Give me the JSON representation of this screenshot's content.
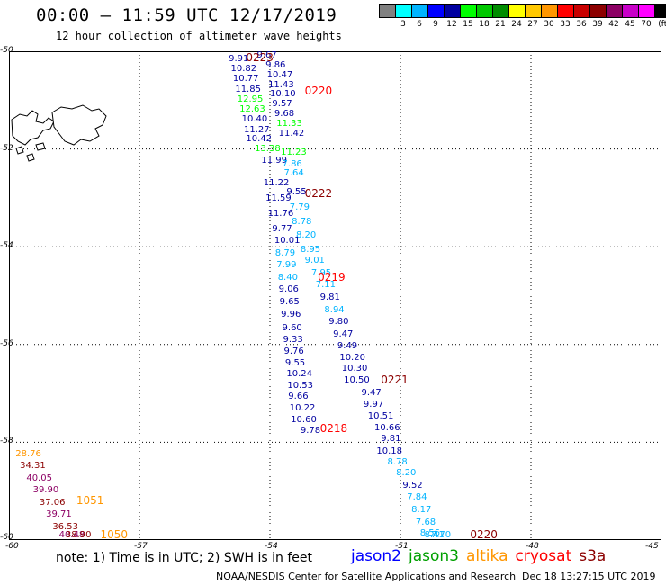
{
  "header": {
    "title": "00:00 – 11:59 UTC 12/17/2019",
    "subtitle": "12 hour collection of altimeter wave heights"
  },
  "color_scale": {
    "colors": [
      "#808080",
      "#00ffff",
      "#00b4ff",
      "#0000ff",
      "#0000a0",
      "#00ff00",
      "#00c800",
      "#008c00",
      "#ffff00",
      "#ffc800",
      "#ff9600",
      "#ff0000",
      "#c80000",
      "#8c0000",
      "#8c0064",
      "#c800c8",
      "#ff00ff",
      "#000000"
    ],
    "labels": [
      {
        "text": "3",
        "slot": 1
      },
      {
        "text": "6",
        "slot": 2
      },
      {
        "text": "9",
        "slot": 3
      },
      {
        "text": "12",
        "slot": 4
      },
      {
        "text": "15",
        "slot": 5
      },
      {
        "text": "18",
        "slot": 6
      },
      {
        "text": "21",
        "slot": 7
      },
      {
        "text": "24",
        "slot": 8
      },
      {
        "text": "27",
        "slot": 9
      },
      {
        "text": "30",
        "slot": 10
      },
      {
        "text": "33",
        "slot": 11
      },
      {
        "text": "36",
        "slot": 12
      },
      {
        "text": "39",
        "slot": 13
      },
      {
        "text": "42",
        "slot": 14
      },
      {
        "text": "45",
        "slot": 15
      },
      {
        "text": "70",
        "slot": 16
      },
      {
        "text": "(ft)",
        "slot": 17
      }
    ]
  },
  "map": {
    "lon_range": [
      -60,
      -45
    ],
    "lat_range": [
      -60,
      -50
    ],
    "lon_labels": [
      "-60",
      "-57",
      "-54",
      "-51",
      "-48",
      "-45"
    ],
    "lat_labels": [
      "-50",
      "-52",
      "-54",
      "-56",
      "-58",
      "-60"
    ],
    "grid": "dotted",
    "land_icon": "falkland-islands-coastline"
  },
  "observations": [
    {
      "text": "9.91",
      "lon": -54.95,
      "lat": -50.08,
      "color": "#0000a0"
    },
    {
      "text": "9.67",
      "lon": -54.3,
      "lat": -50.0,
      "color": "#0000a0"
    },
    {
      "text": "10.82",
      "lon": -54.9,
      "lat": -50.28,
      "color": "#0000a0"
    },
    {
      "text": "9.86",
      "lon": -54.1,
      "lat": -50.2,
      "color": "#0000a0"
    },
    {
      "text": "10.77",
      "lon": -54.85,
      "lat": -50.48,
      "color": "#0000a0"
    },
    {
      "text": "10.47",
      "lon": -54.07,
      "lat": -50.4,
      "color": "#0000a0"
    },
    {
      "text": "11.85",
      "lon": -54.8,
      "lat": -50.7,
      "color": "#0000a0"
    },
    {
      "text": "11.43",
      "lon": -54.04,
      "lat": -50.6,
      "color": "#0000a0"
    },
    {
      "text": "12.95",
      "lon": -54.75,
      "lat": -50.9,
      "color": "#00ff00"
    },
    {
      "text": "10.10",
      "lon": -54.0,
      "lat": -50.8,
      "color": "#0000a0"
    },
    {
      "text": "12.63",
      "lon": -54.7,
      "lat": -51.1,
      "color": "#00ff00"
    },
    {
      "text": "9.57",
      "lon": -53.95,
      "lat": -51.0,
      "color": "#0000a0"
    },
    {
      "text": "10.40",
      "lon": -54.65,
      "lat": -51.3,
      "color": "#0000a0"
    },
    {
      "text": "9.68",
      "lon": -53.9,
      "lat": -51.2,
      "color": "#0000a0"
    },
    {
      "text": "11.33",
      "lon": -53.85,
      "lat": -51.4,
      "color": "#00ff00"
    },
    {
      "text": "11.27",
      "lon": -54.6,
      "lat": -51.52,
      "color": "#0000a0"
    },
    {
      "text": "11.42",
      "lon": -53.8,
      "lat": -51.6,
      "color": "#0000a0"
    },
    {
      "text": "10.42",
      "lon": -54.55,
      "lat": -51.72,
      "color": "#0000a0"
    },
    {
      "text": "13.38",
      "lon": -54.35,
      "lat": -51.92,
      "color": "#00ff00"
    },
    {
      "text": "11.23",
      "lon": -53.75,
      "lat": -51.98,
      "color": "#00ff00"
    },
    {
      "text": "11.99",
      "lon": -54.2,
      "lat": -52.15,
      "color": "#0000a0"
    },
    {
      "text": "7.86",
      "lon": -53.72,
      "lat": -52.22,
      "color": "#00b4ff"
    },
    {
      "text": "7.64",
      "lon": -53.68,
      "lat": -52.42,
      "color": "#00b4ff"
    },
    {
      "text": "11.22",
      "lon": -54.15,
      "lat": -52.62,
      "color": "#0000a0"
    },
    {
      "text": "9.55",
      "lon": -53.62,
      "lat": -52.8,
      "color": "#0000a0"
    },
    {
      "text": "11.59",
      "lon": -54.1,
      "lat": -52.92,
      "color": "#0000a0"
    },
    {
      "text": "7.79",
      "lon": -53.55,
      "lat": -53.12,
      "color": "#00b4ff"
    },
    {
      "text": "11.76",
      "lon": -54.05,
      "lat": -53.25,
      "color": "#0000a0"
    },
    {
      "text": "8.78",
      "lon": -53.5,
      "lat": -53.4,
      "color": "#00b4ff"
    },
    {
      "text": "9.77",
      "lon": -53.95,
      "lat": -53.55,
      "color": "#0000a0"
    },
    {
      "text": "8.20",
      "lon": -53.4,
      "lat": -53.68,
      "color": "#00b4ff"
    },
    {
      "text": "10.01",
      "lon": -53.9,
      "lat": -53.8,
      "color": "#0000a0"
    },
    {
      "text": "8.95",
      "lon": -53.3,
      "lat": -53.98,
      "color": "#00b4ff"
    },
    {
      "text": "8.79",
      "lon": -53.88,
      "lat": -54.05,
      "color": "#00b4ff"
    },
    {
      "text": "9.01",
      "lon": -53.2,
      "lat": -54.2,
      "color": "#00b4ff"
    },
    {
      "text": "7.99",
      "lon": -53.85,
      "lat": -54.3,
      "color": "#00b4ff"
    },
    {
      "text": "7.95",
      "lon": -53.05,
      "lat": -54.45,
      "color": "#00b4ff"
    },
    {
      "text": "8.40",
      "lon": -53.82,
      "lat": -54.55,
      "color": "#00b4ff"
    },
    {
      "text": "7.11",
      "lon": -52.95,
      "lat": -54.7,
      "color": "#00b4ff"
    },
    {
      "text": "9.06",
      "lon": -53.8,
      "lat": -54.78,
      "color": "#0000a0"
    },
    {
      "text": "9.81",
      "lon": -52.85,
      "lat": -54.95,
      "color": "#0000a0"
    },
    {
      "text": "9.65",
      "lon": -53.78,
      "lat": -55.05,
      "color": "#0000a0"
    },
    {
      "text": "8.94",
      "lon": -52.75,
      "lat": -55.22,
      "color": "#00b4ff"
    },
    {
      "text": "9.96",
      "lon": -53.75,
      "lat": -55.3,
      "color": "#0000a0"
    },
    {
      "text": "9.80",
      "lon": -52.65,
      "lat": -55.45,
      "color": "#0000a0"
    },
    {
      "text": "9.60",
      "lon": -53.72,
      "lat": -55.58,
      "color": "#0000a0"
    },
    {
      "text": "9.47",
      "lon": -52.55,
      "lat": -55.7,
      "color": "#0000a0"
    },
    {
      "text": "9.33",
      "lon": -53.7,
      "lat": -55.82,
      "color": "#0000a0"
    },
    {
      "text": "9.49",
      "lon": -52.45,
      "lat": -55.95,
      "color": "#0000a0"
    },
    {
      "text": "9.76",
      "lon": -53.68,
      "lat": -56.05,
      "color": "#0000a0"
    },
    {
      "text": "10.20",
      "lon": -52.4,
      "lat": -56.18,
      "color": "#0000a0"
    },
    {
      "text": "9.55",
      "lon": -53.65,
      "lat": -56.3,
      "color": "#0000a0"
    },
    {
      "text": "10.30",
      "lon": -52.35,
      "lat": -56.4,
      "color": "#0000a0"
    },
    {
      "text": "10.24",
      "lon": -53.62,
      "lat": -56.52,
      "color": "#0000a0"
    },
    {
      "text": "10.50",
      "lon": -52.3,
      "lat": -56.65,
      "color": "#0000a0"
    },
    {
      "text": "10.53",
      "lon": -53.6,
      "lat": -56.75,
      "color": "#0000a0"
    },
    {
      "text": "9.47",
      "lon": -51.9,
      "lat": -56.9,
      "color": "#0000a0"
    },
    {
      "text": "9.66",
      "lon": -53.58,
      "lat": -56.98,
      "color": "#0000a0"
    },
    {
      "text": "9.97",
      "lon": -51.85,
      "lat": -57.15,
      "color": "#0000a0"
    },
    {
      "text": "10.22",
      "lon": -53.55,
      "lat": -57.22,
      "color": "#0000a0"
    },
    {
      "text": "10.51",
      "lon": -51.75,
      "lat": -57.38,
      "color": "#0000a0"
    },
    {
      "text": "10.60",
      "lon": -53.52,
      "lat": -57.45,
      "color": "#0000a0"
    },
    {
      "text": "10.66",
      "lon": -51.6,
      "lat": -57.62,
      "color": "#0000a0"
    },
    {
      "text": "9.78",
      "lon": -53.3,
      "lat": -57.68,
      "color": "#0000a0"
    },
    {
      "text": "9.81",
      "lon": -51.45,
      "lat": -57.85,
      "color": "#0000a0"
    },
    {
      "text": "10.18",
      "lon": -51.55,
      "lat": -58.1,
      "color": "#0000a0"
    },
    {
      "text": "8.78",
      "lon": -51.3,
      "lat": -58.32,
      "color": "#00b4ff"
    },
    {
      "text": "8.20",
      "lon": -51.1,
      "lat": -58.55,
      "color": "#00b4ff"
    },
    {
      "text": "9.52",
      "lon": -50.95,
      "lat": -58.8,
      "color": "#0000a0"
    },
    {
      "text": "7.84",
      "lon": -50.85,
      "lat": -59.05,
      "color": "#00b4ff"
    },
    {
      "text": "8.17",
      "lon": -50.75,
      "lat": -59.3,
      "color": "#00b4ff"
    },
    {
      "text": "7.68",
      "lon": -50.65,
      "lat": -59.55,
      "color": "#00b4ff"
    },
    {
      "text": "8.56",
      "lon": -50.55,
      "lat": -59.78,
      "color": "#00b4ff"
    },
    {
      "text": "8.41",
      "lon": -50.45,
      "lat": -60.0,
      "color": "#00b4ff"
    },
    {
      "text": "7.70",
      "lon": -50.3,
      "lat": -60.2,
      "color": "#00b4ff"
    },
    {
      "text": "28.76",
      "lon": -59.85,
      "lat": -58.15,
      "color": "#ff9600"
    },
    {
      "text": "34.31",
      "lon": -59.75,
      "lat": -58.4,
      "color": "#8c0000"
    },
    {
      "text": "40.05",
      "lon": -59.6,
      "lat": -58.65,
      "color": "#8c0064"
    },
    {
      "text": "39.90",
      "lon": -59.45,
      "lat": -58.9,
      "color": "#8c0064"
    },
    {
      "text": "37.06",
      "lon": -59.3,
      "lat": -59.15,
      "color": "#8c0000"
    },
    {
      "text": "39.71",
      "lon": -59.15,
      "lat": -59.4,
      "color": "#8c0064"
    },
    {
      "text": "36.53",
      "lon": -59.0,
      "lat": -59.65,
      "color": "#8c0000"
    },
    {
      "text": "40.48",
      "lon": -58.85,
      "lat": -59.9,
      "color": "#8c0064"
    },
    {
      "text": "38.90",
      "lon": -58.7,
      "lat": -60.15,
      "color": "#8c0000"
    }
  ],
  "pass_ids": [
    {
      "text": "0223",
      "lon": -54.55,
      "lat": -50.02,
      "color": "#8c0000"
    },
    {
      "text": "0220",
      "lon": -53.2,
      "lat": -50.7,
      "color": "#ff0000"
    },
    {
      "text": "0222",
      "lon": -53.2,
      "lat": -52.8,
      "color": "#8c0000"
    },
    {
      "text": "0219",
      "lon": -52.9,
      "lat": -54.52,
      "color": "#ff0000"
    },
    {
      "text": "0221",
      "lon": -51.45,
      "lat": -56.62,
      "color": "#8c0000"
    },
    {
      "text": "0218",
      "lon": -52.85,
      "lat": -57.6,
      "color": "#ff0000"
    },
    {
      "text": "1051",
      "lon": -58.45,
      "lat": -59.08,
      "color": "#ff9600"
    },
    {
      "text": "1050",
      "lon": -57.9,
      "lat": -60.12,
      "color": "#ff9600"
    },
    {
      "text": "0220",
      "lon": -49.4,
      "lat": -60.12,
      "color": "#8c0000"
    }
  ],
  "footer": {
    "note": "note: 1) Time is in UTC; 2) SWH is in feet",
    "satellites": [
      {
        "name": "jason2",
        "color": "#0000ff"
      },
      {
        "name": "jason3",
        "color": "#00a000"
      },
      {
        "name": "altika",
        "color": "#ff9600"
      },
      {
        "name": "cryosat",
        "color": "#ff0000"
      },
      {
        "name": "s3a",
        "color": "#8c0000"
      }
    ],
    "credit": "NOAA/NESDIS Center for Satellite Applications and Research",
    "timestamp": "Dec 18 13:27:15 UTC 2019"
  }
}
